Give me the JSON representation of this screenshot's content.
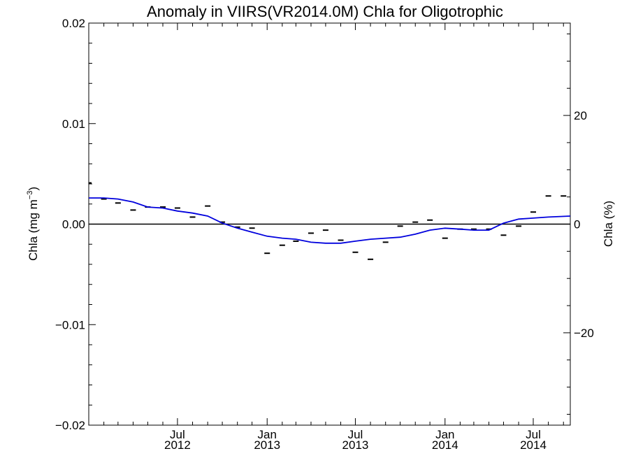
{
  "chart_data": {
    "type": "line",
    "title": "Anomaly in VIIRS(VR2014.0M) Chla for Oligotrophic",
    "ylabel": "Chla (mg m",
    "ylabel_superscript": "−3",
    "ylabel_close": ")",
    "y2label": "Chla (%)",
    "ylim": [
      -0.02,
      0.02
    ],
    "y2lim": [
      -37,
      37
    ],
    "xlim": [
      "2012-01-01",
      "2014-09-15"
    ],
    "yticks": [
      -0.02,
      -0.01,
      0.0,
      0.01,
      0.02
    ],
    "ytick_labels": [
      "−0.02",
      "−0.01",
      "0.00",
      "0.01",
      "0.02"
    ],
    "y2ticks": [
      -20,
      0,
      20
    ],
    "y2tick_labels": [
      "−20",
      "0",
      "20"
    ],
    "xticks": [
      {
        "date": "2012-07-01",
        "label": "Jul",
        "year": "2012"
      },
      {
        "date": "2013-01-01",
        "label": "Jan",
        "year": "2013"
      },
      {
        "date": "2013-07-01",
        "label": "Jul",
        "year": "2013"
      },
      {
        "date": "2014-01-01",
        "label": "Jan",
        "year": "2014"
      },
      {
        "date": "2014-07-01",
        "label": "Jul",
        "year": "2014"
      }
    ],
    "zero_line": true,
    "series": [
      {
        "kind": "monthly-anomaly-markers",
        "color": "#000000",
        "x": [
          "2012-01-01",
          "2012-02-01",
          "2012-03-01",
          "2012-04-01",
          "2012-05-01",
          "2012-06-01",
          "2012-07-01",
          "2012-08-01",
          "2012-09-01",
          "2012-10-01",
          "2012-11-01",
          "2012-12-01",
          "2013-01-01",
          "2013-02-01",
          "2013-03-01",
          "2013-04-01",
          "2013-05-01",
          "2013-06-01",
          "2013-07-01",
          "2013-08-01",
          "2013-09-01",
          "2013-10-01",
          "2013-11-01",
          "2013-12-01",
          "2014-01-01",
          "2014-02-01",
          "2014-03-01",
          "2014-04-01",
          "2014-05-01",
          "2014-06-01",
          "2014-07-01",
          "2014-08-01",
          "2014-09-01"
        ],
        "values": [
          0.0041,
          0.0025,
          0.0021,
          0.0014,
          0.0017,
          0.0017,
          0.0016,
          0.0007,
          0.0018,
          0.0002,
          -0.0003,
          -0.0004,
          -0.0029,
          -0.0021,
          -0.0017,
          -0.0009,
          -0.0006,
          -0.0016,
          -0.0028,
          -0.0035,
          -0.0018,
          -0.0002,
          0.0002,
          0.0004,
          -0.0014,
          -0.0005,
          -0.0005,
          -0.0005,
          -0.0011,
          -0.0002,
          0.0012,
          0.0028,
          0.0028
        ]
      },
      {
        "kind": "smoothed",
        "color": "#0000dd",
        "x": [
          "2012-01-01",
          "2012-02-01",
          "2012-03-01",
          "2012-04-01",
          "2012-05-01",
          "2012-06-01",
          "2012-07-01",
          "2012-08-01",
          "2012-09-01",
          "2012-10-01",
          "2012-11-01",
          "2012-12-01",
          "2013-01-01",
          "2013-02-01",
          "2013-03-01",
          "2013-04-01",
          "2013-05-01",
          "2013-06-01",
          "2013-07-01",
          "2013-08-01",
          "2013-09-01",
          "2013-10-01",
          "2013-11-01",
          "2013-12-01",
          "2014-01-01",
          "2014-02-01",
          "2014-03-01",
          "2014-04-01",
          "2014-05-01",
          "2014-06-01",
          "2014-07-01",
          "2014-08-01",
          "2014-09-15"
        ],
        "values": [
          0.0026,
          0.0026,
          0.0025,
          0.0022,
          0.0017,
          0.0016,
          0.0013,
          0.0011,
          0.0008,
          0.0001,
          -0.0004,
          -0.0008,
          -0.0012,
          -0.0014,
          -0.0015,
          -0.0018,
          -0.0019,
          -0.0019,
          -0.0017,
          -0.0015,
          -0.0014,
          -0.0013,
          -0.001,
          -0.0006,
          -0.0004,
          -0.0005,
          -0.0006,
          -0.0006,
          0.0001,
          0.0005,
          0.0006,
          0.0007,
          0.0008
        ]
      }
    ]
  }
}
